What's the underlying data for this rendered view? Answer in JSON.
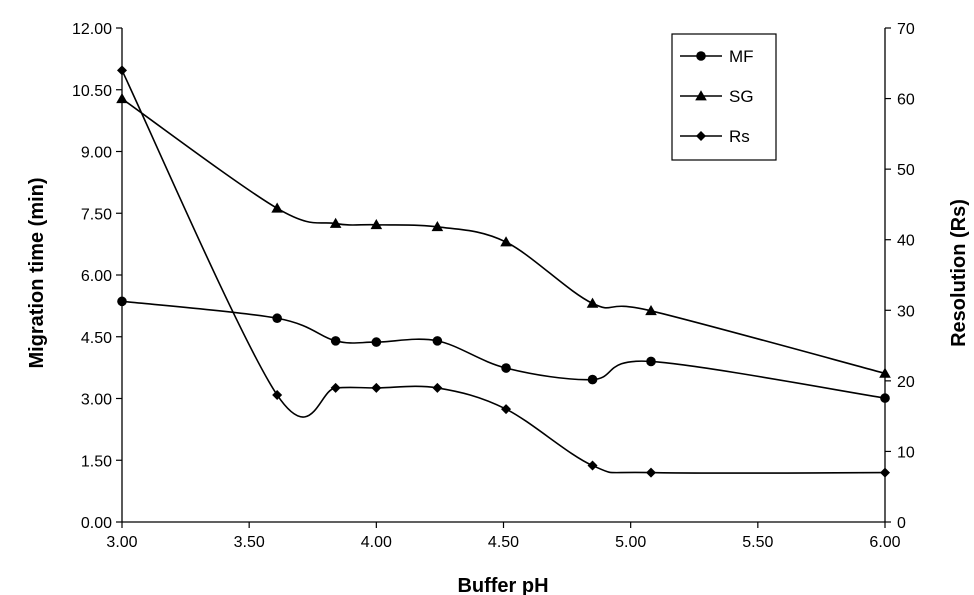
{
  "chart_data": {
    "type": "line",
    "title": "",
    "xlabel": "Buffer pH",
    "ylabel": "Migration time (min)",
    "y2label": "Resolution (Rs)",
    "xlim": [
      3.0,
      6.0
    ],
    "ylim": [
      0.0,
      12.0
    ],
    "y2lim": [
      0,
      70
    ],
    "xticks": [
      "3.00",
      "3.50",
      "4.00",
      "4.50",
      "5.00",
      "5.50",
      "6.00"
    ],
    "yticks": [
      "0.00",
      "1.50",
      "3.00",
      "4.50",
      "6.00",
      "7.50",
      "9.00",
      "10.50",
      "12.00"
    ],
    "y2ticks": [
      "0",
      "10",
      "20",
      "30",
      "40",
      "50",
      "60",
      "70"
    ],
    "grid": false,
    "legend_position": "top-right",
    "x": [
      3.0,
      3.61,
      3.84,
      4.0,
      4.24,
      4.51,
      4.85,
      5.08,
      6.0
    ],
    "series": [
      {
        "name": "MF",
        "axis": "left",
        "marker": "circle",
        "values": [
          5.36,
          4.95,
          4.4,
          4.37,
          4.4,
          3.74,
          3.46,
          3.9,
          3.01
        ]
      },
      {
        "name": "SG",
        "axis": "left",
        "marker": "triangle",
        "values": [
          10.28,
          7.62,
          7.25,
          7.22,
          7.17,
          6.8,
          5.31,
          5.13,
          3.61
        ]
      },
      {
        "name": "Rs",
        "axis": "right",
        "marker": "diamond",
        "values": [
          64,
          18,
          19,
          19,
          19,
          16,
          8,
          7,
          7
        ]
      }
    ]
  }
}
